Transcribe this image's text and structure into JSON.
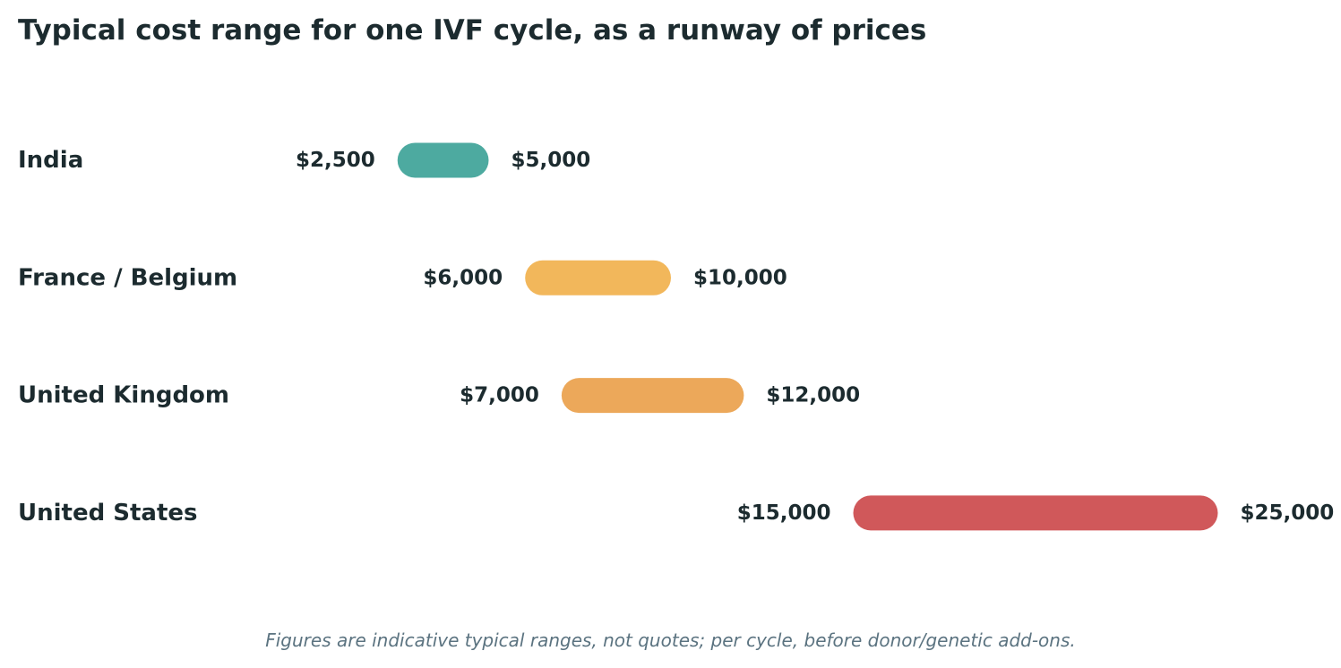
{
  "chart_data": {
    "type": "range-bar",
    "title": "Typical cost range for one IVF cycle, as a runway of prices",
    "footnote": "Figures are indicative typical ranges, not quotes; per cycle, before donor/genetic add-ons.",
    "currency_prefix": "$",
    "rows": [
      {
        "label": "India",
        "low": 2500,
        "high": 5000,
        "low_label": "$2,500",
        "high_label": "$5,000",
        "color": "#4daaa0"
      },
      {
        "label": "France / Belgium",
        "low": 6000,
        "high": 10000,
        "low_label": "$6,000",
        "high_label": "$10,000",
        "color": "#f2b75b"
      },
      {
        "label": "United Kingdom",
        "low": 7000,
        "high": 12000,
        "low_label": "$7,000",
        "high_label": "$12,000",
        "color": "#eca85a"
      },
      {
        "label": "United States",
        "low": 15000,
        "high": 25000,
        "low_label": "$15,000",
        "high_label": "$25,000",
        "color": "#d0585a"
      }
    ],
    "grid": false,
    "axis_visible": false
  }
}
